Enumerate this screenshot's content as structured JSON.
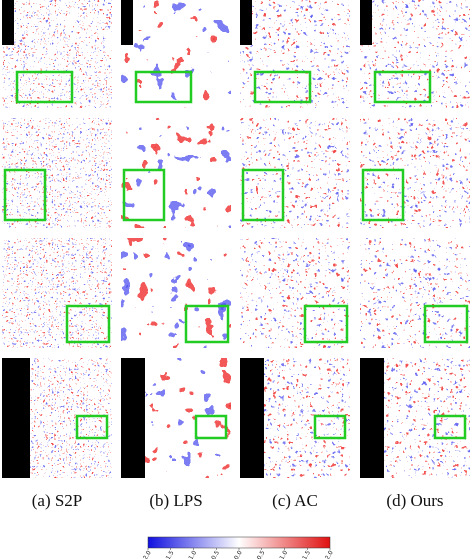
{
  "captions": [
    "(a) S2P",
    "(b) LPS",
    "(c) AC",
    "(d) Ours"
  ],
  "colorbar": {
    "lim": [
      -2,
      2
    ],
    "ticks": [
      {
        "value": -2,
        "label": "−2.0"
      },
      {
        "value": -1.5,
        "label": "−1.5"
      },
      {
        "value": -1,
        "label": "−1.0"
      },
      {
        "value": -0.5,
        "label": "−0.5"
      },
      {
        "value": 0,
        "label": "0.0"
      },
      {
        "value": 0.5,
        "label": "0.5"
      },
      {
        "value": 1,
        "label": "1.0"
      },
      {
        "value": 1.5,
        "label": "1.5"
      },
      {
        "value": 2,
        "label": "2.0"
      }
    ]
  }
}
